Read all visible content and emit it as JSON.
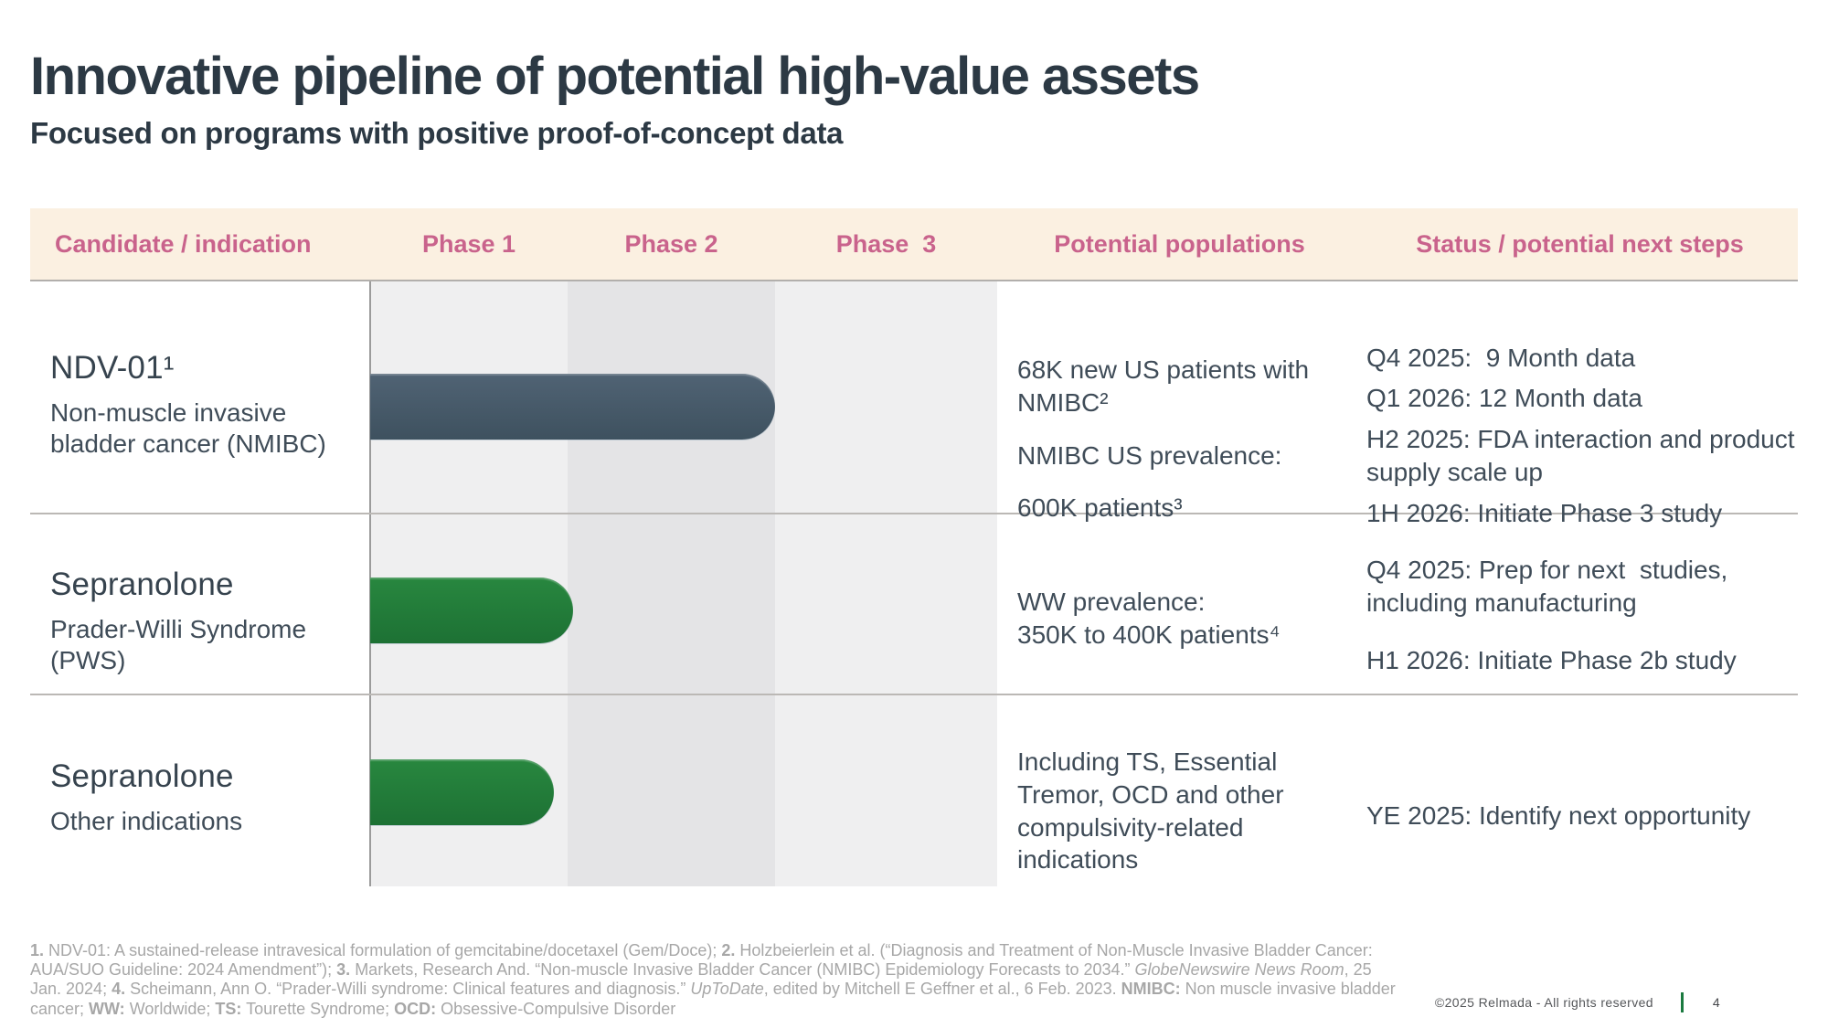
{
  "slide": {
    "title": "Innovative pipeline of potential high-value assets",
    "subtitle": "Focused on programs with positive proof-of-concept data"
  },
  "table": {
    "headers": {
      "candidate": "Candidate / indication",
      "phase1": "Phase 1",
      "phase2": "Phase 2",
      "phase3": "Phase  3",
      "populations": "Potential populations",
      "status": "Status / potential next steps"
    },
    "rows": [
      {
        "candidate": "NDV-01¹",
        "indication": "Non-muscle invasive bladder cancer (NMIBC)",
        "bar": {
          "span": "Phase 1 through Phase 2",
          "color": "#46596a",
          "style": "width:443px;background:linear-gradient(180deg,#506374 0%,#3e515f 100%)"
        },
        "populations": [
          "68K new US patients with NMIBC²",
          "NMIBC US prevalence:",
          "600K patients³"
        ],
        "status": [
          "Q4 2025:  9 Month data",
          "Q1 2026: 12 Month data",
          "H2 2025: FDA interaction and product supply scale up",
          "1H 2026: Initiate Phase 3 study"
        ]
      },
      {
        "candidate": "Sepranolone",
        "indication": "Prader-Willi Syndrome (PWS)",
        "bar": {
          "span": "Phase 1",
          "color": "#227c3a",
          "style": "width:222px;background:linear-gradient(180deg,#28873f 0%,#1d7134 100%)"
        },
        "populations": [
          "WW prevalence:\n350K to 400K patients⁴"
        ],
        "status": [
          "Q4 2025: Prep for next  studies, including manufacturing",
          "H1 2026: Initiate Phase 2b study"
        ]
      },
      {
        "candidate": "Sepranolone",
        "indication": "Other indications",
        "bar": {
          "span": "Phase 1",
          "color": "#227c3a",
          "style": "width:201px;background:linear-gradient(180deg,#28873f 0%,#1d7134 100%)"
        },
        "populations": [
          "Including TS, Essential Tremor, OCD and other compulsivity-related indications"
        ],
        "status": [
          "YE 2025: Identify next opportunity"
        ]
      }
    ]
  },
  "footnotes": {
    "segments": [
      {
        "b": true,
        "t": "1."
      },
      {
        "t": " NDV-01: A sustained-release intravesical formulation of gemcitabine/docetaxel (Gem/Doce); "
      },
      {
        "b": true,
        "t": "2."
      },
      {
        "t": " Holzbeierlein et al. (“Diagnosis and Treatment of Non-Muscle Invasive Bladder Cancer: AUA/SUO Guideline: 2024 Amendment”); "
      },
      {
        "b": true,
        "t": "3."
      },
      {
        "t": " Markets, Research And. “Non-muscle Invasive Bladder Cancer (NMIBC) Epidemiology Forecasts to 2034.” "
      },
      {
        "i": true,
        "t": "GlobeNewswire News Room"
      },
      {
        "t": ", 25 Jan. 2024; "
      },
      {
        "b": true,
        "t": "4."
      },
      {
        "t": " Scheimann, Ann O. “Prader-Willi syndrome: Clinical features and diagnosis.” "
      },
      {
        "i": true,
        "t": "UpToDate"
      },
      {
        "t": ", edited by Mitchell E Geffner et al., 6 Feb. 2023. "
      },
      {
        "b": true,
        "t": "NMIBC:"
      },
      {
        "t": " Non muscle invasive bladder cancer; "
      },
      {
        "b": true,
        "t": "WW:"
      },
      {
        "t": " Worldwide; "
      },
      {
        "b": true,
        "t": "TS:"
      },
      {
        "t": " Tourette Syndrome; "
      },
      {
        "b": true,
        "t": "OCD:"
      },
      {
        "t": " Obsessive-Compulsive Disorder"
      }
    ]
  },
  "footer": {
    "copyright": "©2025 Relmada - All rights reserved",
    "page": "4"
  },
  "colors": {
    "accent_pink": "#c9638c",
    "header_band": "#fbf0e1",
    "phase_band_light": "#efeff0",
    "phase_band_dark": "#e4e4e6",
    "bar_slate": "#46596a",
    "bar_green": "#227c3a",
    "title_text": "#2c3944",
    "body_text": "#3f4c58",
    "footnote_text": "#a7a7a7",
    "footer_green": "#1b7a40"
  }
}
